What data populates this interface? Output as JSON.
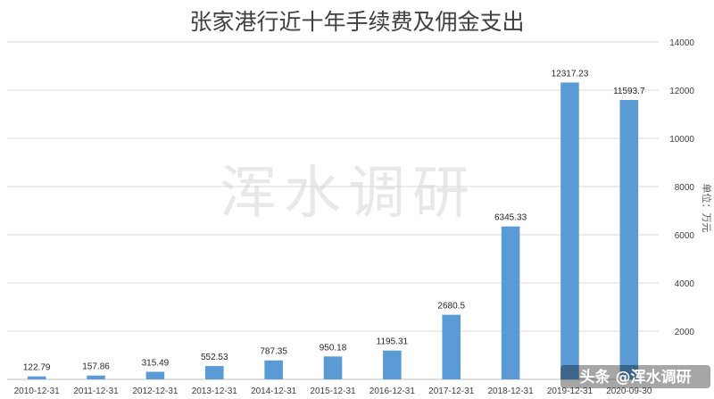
{
  "chart_data": {
    "type": "bar",
    "title": "张家港行近十年手续费及佣金支出",
    "ylabel": "单位：万元",
    "ylim": [
      0,
      14000
    ],
    "yticks": [
      2000,
      4000,
      6000,
      8000,
      10000,
      12000,
      14000
    ],
    "grid": true,
    "y_axis_side": "right",
    "categories": [
      "2010-12-31",
      "2011-12-31",
      "2012-12-31",
      "2013-12-31",
      "2014-12-31",
      "2015-12-31",
      "2016-12-31",
      "2017-12-31",
      "2018-12-31",
      "2019-12-31",
      "2020-09-30"
    ],
    "values": [
      122.79,
      157.86,
      315.49,
      552.53,
      787.35,
      950.18,
      1195.31,
      2680.5,
      6345.33,
      12317.23,
      11593.7
    ],
    "value_labels": [
      "122.79",
      "157.86",
      "315.49",
      "552.53",
      "787.35",
      "950.18",
      "1195.31",
      "2680.5",
      "6345.33",
      "12317.23",
      "11593.7"
    ],
    "bar_color": "#5b9bd5"
  },
  "watermark": "浑水调研",
  "badge": "头条 @浑水调研"
}
